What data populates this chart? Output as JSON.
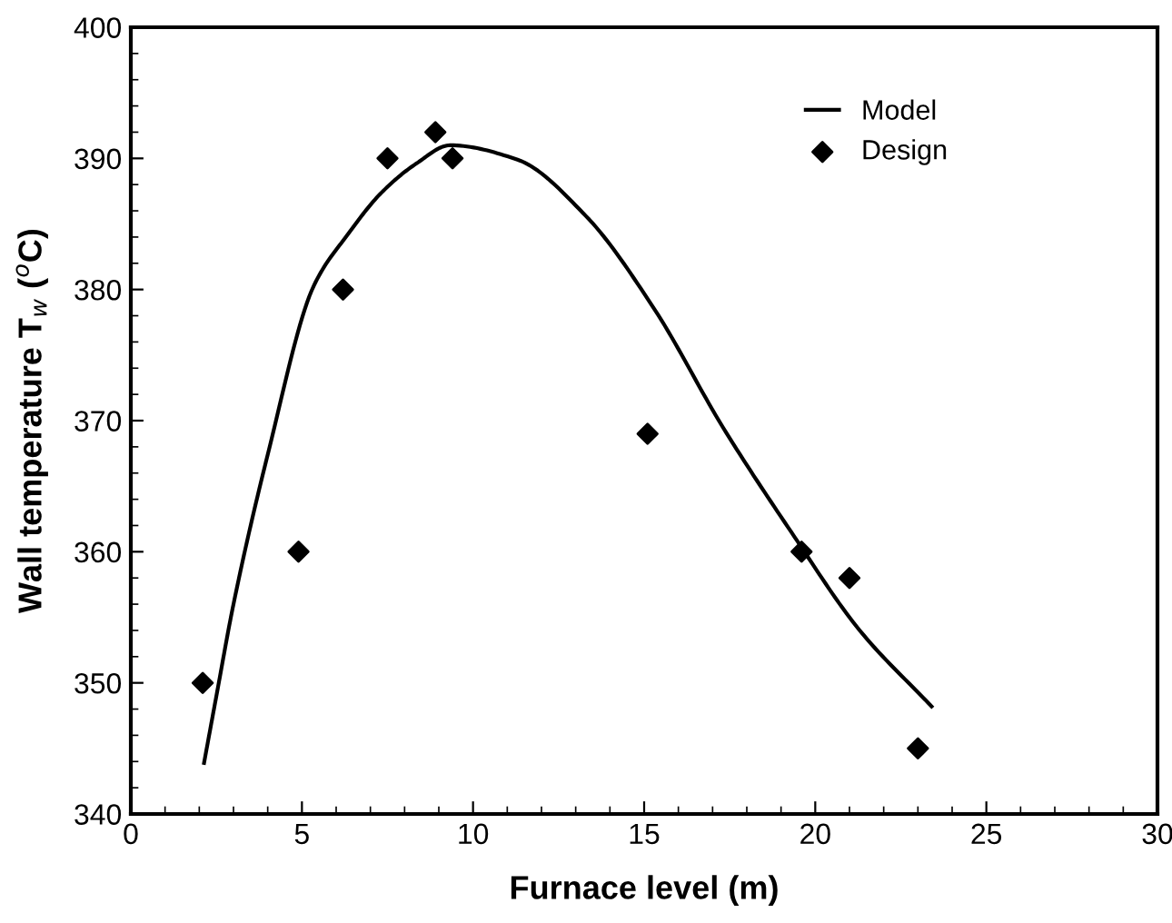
{
  "chart_data": {
    "type": "line",
    "xlabel": "Furnace level (m)",
    "ylabel": "Wall temperature T$_{w}$ ($^{o}$C)",
    "xlim": [
      0,
      30
    ],
    "xticks": [
      0,
      5,
      10,
      15,
      20,
      25,
      30
    ],
    "ylim": [
      340,
      400
    ],
    "yticks": [
      340,
      350,
      360,
      370,
      380,
      390,
      400
    ],
    "grid": false,
    "legend": "top right",
    "series": [
      {
        "name": "Model",
        "color": "#000000",
        "marker": "none",
        "line_style": "solid",
        "x": [
          2.14,
          2.5,
          3.0,
          4.0,
          5.35,
          6.34,
          7.33,
          8.34,
          9.33,
          11.3,
          13.3,
          15.3,
          17.3,
          19.3,
          21.3,
          23.4
        ],
        "values": [
          343.9,
          349,
          356,
          367.4,
          380.3,
          384.2,
          387.4,
          389.6,
          391,
          389.9,
          385.6,
          378.5,
          369.5,
          361.5,
          354,
          348.2
        ]
      },
      {
        "name": "Design",
        "type": "scatter",
        "color": "#000000",
        "marker": "diamond",
        "x": [
          2.1,
          4.9,
          6.2,
          7.5,
          8.9,
          9.4,
          15.1,
          19.6,
          21,
          23
        ],
        "values": [
          350,
          360,
          380,
          390,
          392,
          390,
          369,
          360,
          358,
          345
        ]
      }
    ]
  }
}
